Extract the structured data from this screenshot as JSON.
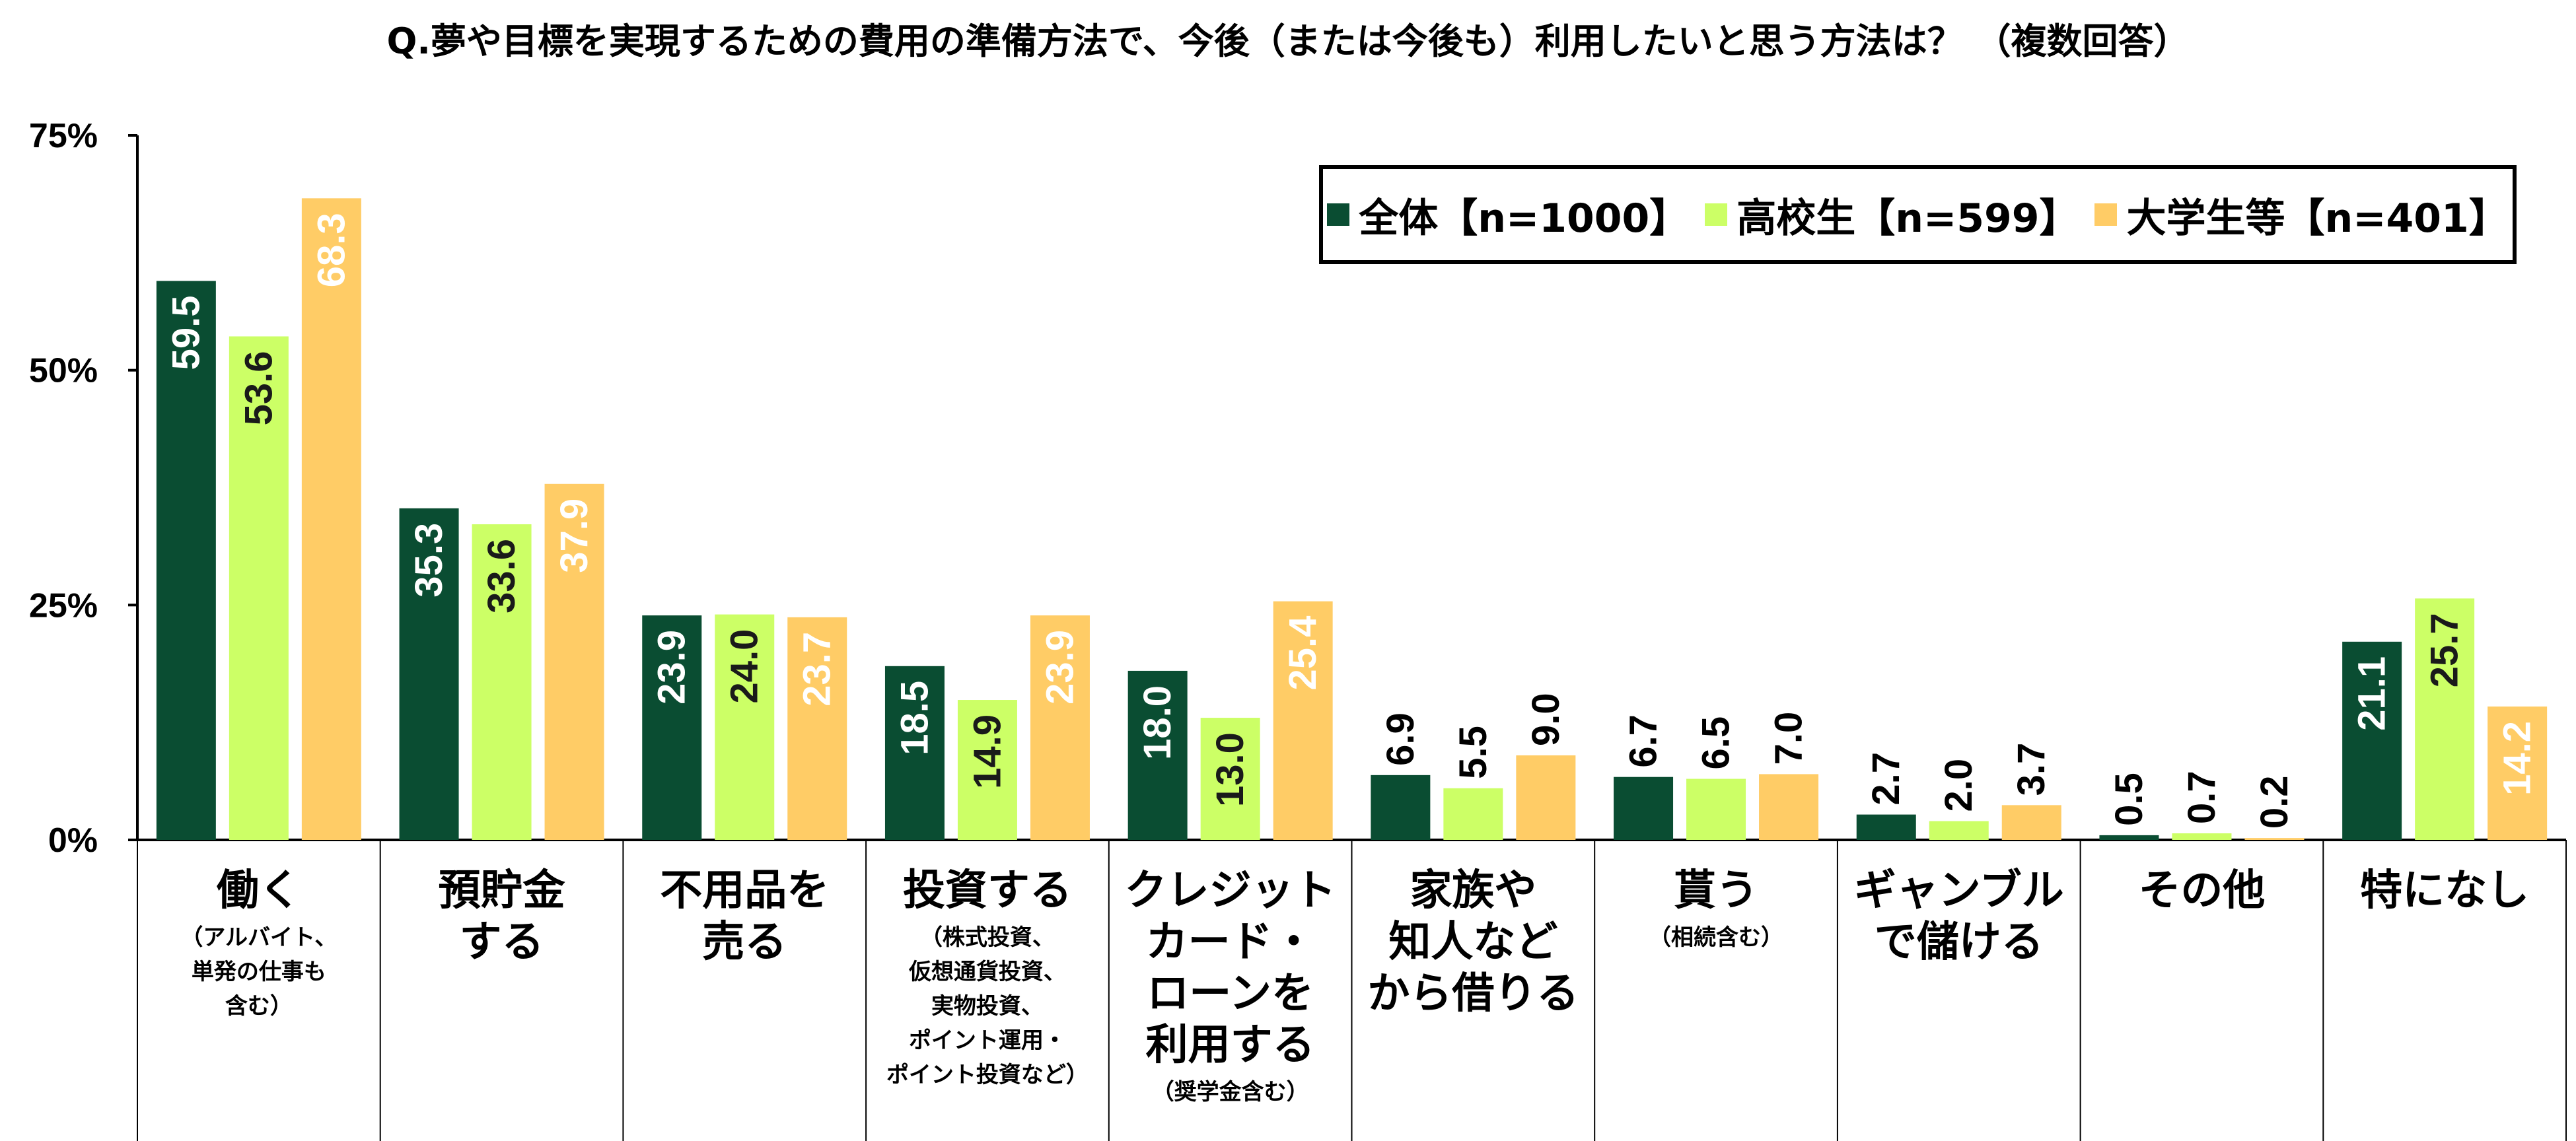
{
  "chart_data": {
    "type": "bar",
    "title": "Q.夢や目標を実現するための費用の準備方法で、今後（または今後も）利用したいと思う方法は？ （複数回答）",
    "ylim": [
      0,
      75
    ],
    "yticks": [
      "0%",
      "25%",
      "50%",
      "75%"
    ],
    "categories": [
      {
        "label": "働く",
        "note": "（アルバイト、\n単発の仕事も\n含む）"
      },
      {
        "label": "預貯金\nする",
        "note": ""
      },
      {
        "label": "不用品を\n売る",
        "note": ""
      },
      {
        "label": "投資する",
        "note": "（株式投資、\n仮想通貨投資、\n実物投資、\nポイント運用・\nポイント投資など）"
      },
      {
        "label": "クレジット\nカード・\nローンを\n利用する",
        "note": "（奨学金含む）"
      },
      {
        "label": "家族や\n知人など\nから借りる",
        "note": ""
      },
      {
        "label": "貰う",
        "note": "（相続含む）"
      },
      {
        "label": "ギャンブル\nで儲ける",
        "note": ""
      },
      {
        "label": "その他",
        "note": ""
      },
      {
        "label": "特になし",
        "note": ""
      }
    ],
    "series": [
      {
        "name": "全体【n=1000】",
        "color": "#0a4d32",
        "values": [
          59.5,
          35.3,
          23.9,
          18.5,
          18.0,
          6.9,
          6.7,
          2.7,
          0.5,
          21.1
        ]
      },
      {
        "name": "高校生【n=599】",
        "color": "#ccff66",
        "values": [
          53.6,
          33.6,
          24.0,
          14.9,
          13.0,
          5.5,
          6.5,
          2.0,
          0.7,
          25.7
        ]
      },
      {
        "name": "大学生等【n=401】",
        "color": "#ffcc66",
        "values": [
          68.3,
          37.9,
          23.7,
          23.9,
          25.4,
          9.0,
          7.0,
          3.7,
          0.2,
          14.2
        ]
      }
    ],
    "legend_position": "top-right",
    "grid": false
  }
}
